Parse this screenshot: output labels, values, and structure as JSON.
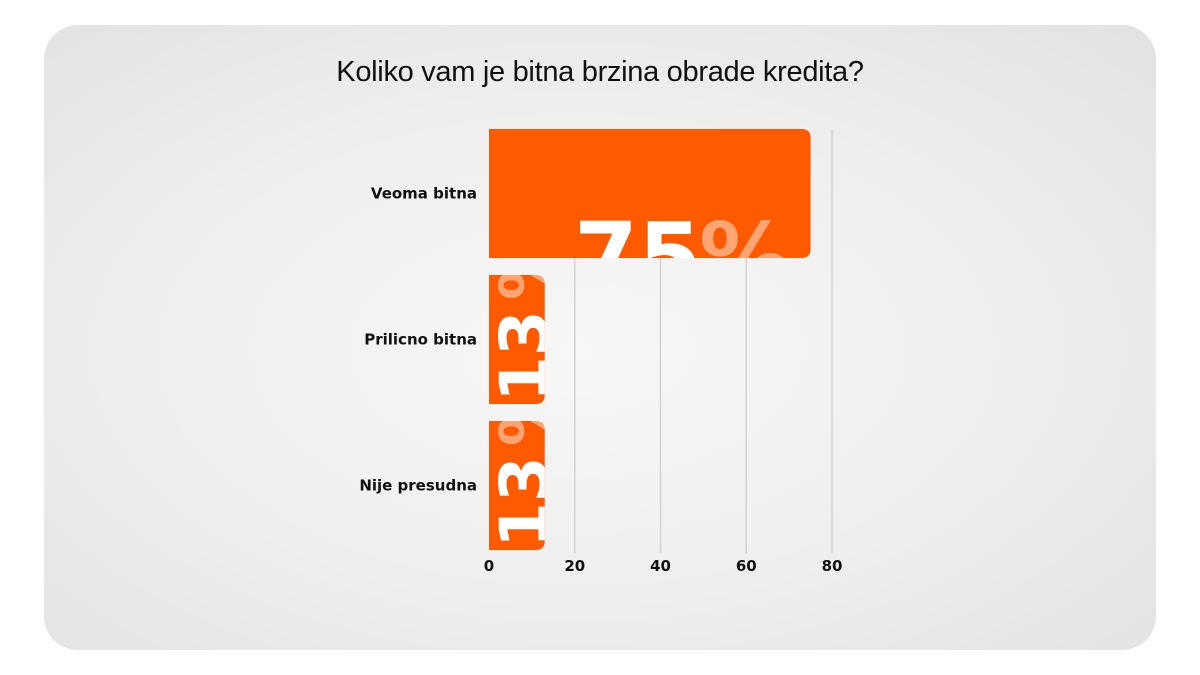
{
  "title": "Koliko vam je bitna brzina obrade kredita?",
  "colors": {
    "bar": "#ff5a00",
    "grid": "#d2d2d2",
    "text": "#111111"
  },
  "chart_data": {
    "type": "bar",
    "orientation": "horizontal",
    "categories": [
      "Veoma bitna",
      "Prilicno bitna",
      "Nije presudna"
    ],
    "values": [
      75,
      13,
      13
    ],
    "value_labels": [
      "75",
      "13",
      "13"
    ],
    "value_suffix": "%",
    "xlim": [
      0,
      80
    ],
    "xticks": [
      0,
      20,
      40,
      60,
      80
    ],
    "xtick_labels": [
      "0",
      "20",
      "40",
      "60",
      "80"
    ],
    "title": "Koliko vam je bitna brzina obrade kredita?",
    "xlabel": "",
    "ylabel": "",
    "grid": "vertical",
    "legend": "none"
  }
}
